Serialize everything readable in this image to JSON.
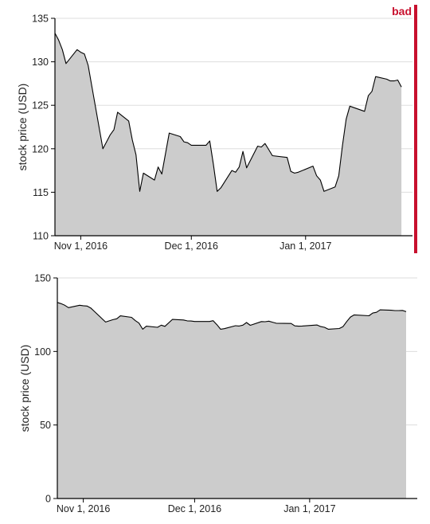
{
  "badge": {
    "text": "bad",
    "color": "#c8102e"
  },
  "colors": {
    "area_fill": "#cccccc",
    "line": "#000000",
    "grid": "#dddddd",
    "axis": "#000000"
  },
  "chart_data": [
    {
      "type": "area",
      "ylabel": "stock price (USD)",
      "xlabel": "",
      "title": "",
      "ylim": [
        110,
        135
      ],
      "yticks": [
        110,
        115,
        120,
        125,
        130,
        135
      ],
      "xlim": [
        "2016-10-25",
        "2017-01-30"
      ],
      "xticks": [
        {
          "date": "2016-11-01",
          "label": "Nov 1, 2016"
        },
        {
          "date": "2016-12-01",
          "label": "Dec 1, 2016"
        },
        {
          "date": "2017-01-01",
          "label": "Jan 1, 2017"
        }
      ],
      "grid": true,
      "series": [
        {
          "x": [
            "2016-10-25",
            "2016-10-26",
            "2016-10-27",
            "2016-10-28",
            "2016-10-31",
            "2016-11-01",
            "2016-11-02",
            "2016-11-03",
            "2016-11-04",
            "2016-11-07",
            "2016-11-08",
            "2016-11-09",
            "2016-11-10",
            "2016-11-11",
            "2016-11-14",
            "2016-11-15",
            "2016-11-16",
            "2016-11-17",
            "2016-11-18",
            "2016-11-21",
            "2016-11-22",
            "2016-11-23",
            "2016-11-25",
            "2016-11-28",
            "2016-11-29",
            "2016-11-30",
            "2016-12-01",
            "2016-12-02",
            "2016-12-05",
            "2016-12-06",
            "2016-12-07",
            "2016-12-08",
            "2016-12-09",
            "2016-12-12",
            "2016-12-13",
            "2016-12-14",
            "2016-12-15",
            "2016-12-16",
            "2016-12-19",
            "2016-12-20",
            "2016-12-21",
            "2016-12-22",
            "2016-12-23",
            "2016-12-27",
            "2016-12-28",
            "2016-12-29",
            "2016-12-30",
            "2017-01-03",
            "2017-01-04",
            "2017-01-05",
            "2017-01-06",
            "2017-01-09",
            "2017-01-10",
            "2017-01-11",
            "2017-01-12",
            "2017-01-13",
            "2017-01-17",
            "2017-01-18",
            "2017-01-19",
            "2017-01-20",
            "2017-01-23",
            "2017-01-24",
            "2017-01-25",
            "2017-01-26",
            "2017-01-27"
          ],
          "values": [
            133.3,
            132.5,
            131.4,
            129.8,
            131.4,
            131.1,
            130.9,
            129.6,
            127.2,
            120.0,
            120.8,
            121.6,
            122.2,
            124.2,
            123.2,
            121.0,
            119.3,
            115.1,
            117.2,
            116.4,
            117.9,
            117.1,
            121.8,
            121.4,
            120.8,
            120.7,
            120.4,
            120.4,
            120.4,
            120.9,
            118.2,
            115.1,
            115.5,
            117.5,
            117.3,
            117.9,
            119.7,
            117.8,
            120.3,
            120.2,
            120.6,
            119.9,
            119.2,
            119.0,
            117.4,
            117.2,
            117.3,
            118.0,
            116.9,
            116.4,
            115.1,
            115.6,
            116.9,
            120.4,
            123.4,
            124.9,
            124.3,
            126.1,
            126.6,
            128.3,
            128.0,
            127.8,
            127.8,
            127.9,
            127.1
          ]
        }
      ]
    },
    {
      "type": "area",
      "ylabel": "stock price (USD)",
      "xlabel": "",
      "title": "",
      "ylim": [
        0,
        150
      ],
      "yticks": [
        0,
        50,
        100,
        150
      ],
      "xlim": [
        "2016-10-25",
        "2017-01-30"
      ],
      "xticks": [
        {
          "date": "2016-11-01",
          "label": "Nov 1, 2016"
        },
        {
          "date": "2016-12-01",
          "label": "Dec 1, 2016"
        },
        {
          "date": "2017-01-01",
          "label": "Jan 1, 2017"
        }
      ],
      "grid": true,
      "series": [
        {
          "x": [
            "2016-10-25",
            "2016-10-26",
            "2016-10-27",
            "2016-10-28",
            "2016-10-31",
            "2016-11-01",
            "2016-11-02",
            "2016-11-03",
            "2016-11-04",
            "2016-11-07",
            "2016-11-08",
            "2016-11-09",
            "2016-11-10",
            "2016-11-11",
            "2016-11-14",
            "2016-11-15",
            "2016-11-16",
            "2016-11-17",
            "2016-11-18",
            "2016-11-21",
            "2016-11-22",
            "2016-11-23",
            "2016-11-25",
            "2016-11-28",
            "2016-11-29",
            "2016-11-30",
            "2016-12-01",
            "2016-12-02",
            "2016-12-05",
            "2016-12-06",
            "2016-12-07",
            "2016-12-08",
            "2016-12-09",
            "2016-12-12",
            "2016-12-13",
            "2016-12-14",
            "2016-12-15",
            "2016-12-16",
            "2016-12-19",
            "2016-12-20",
            "2016-12-21",
            "2016-12-22",
            "2016-12-23",
            "2016-12-27",
            "2016-12-28",
            "2016-12-29",
            "2016-12-30",
            "2017-01-03",
            "2017-01-04",
            "2017-01-05",
            "2017-01-06",
            "2017-01-09",
            "2017-01-10",
            "2017-01-11",
            "2017-01-12",
            "2017-01-13",
            "2017-01-17",
            "2017-01-18",
            "2017-01-19",
            "2017-01-20",
            "2017-01-23",
            "2017-01-24",
            "2017-01-25",
            "2017-01-26",
            "2017-01-27"
          ],
          "values": [
            133.3,
            132.5,
            131.4,
            129.8,
            131.4,
            131.1,
            130.9,
            129.6,
            127.2,
            120.0,
            120.8,
            121.6,
            122.2,
            124.2,
            123.2,
            121.0,
            119.3,
            115.1,
            117.2,
            116.4,
            117.9,
            117.1,
            121.8,
            121.4,
            120.8,
            120.7,
            120.4,
            120.4,
            120.4,
            120.9,
            118.2,
            115.1,
            115.5,
            117.5,
            117.3,
            117.9,
            119.7,
            117.8,
            120.3,
            120.2,
            120.6,
            119.9,
            119.2,
            119.0,
            117.4,
            117.2,
            117.3,
            118.0,
            116.9,
            116.4,
            115.1,
            115.6,
            116.9,
            120.4,
            123.4,
            124.9,
            124.3,
            126.1,
            126.6,
            128.3,
            128.0,
            127.8,
            127.8,
            127.9,
            127.1
          ]
        }
      ]
    }
  ]
}
